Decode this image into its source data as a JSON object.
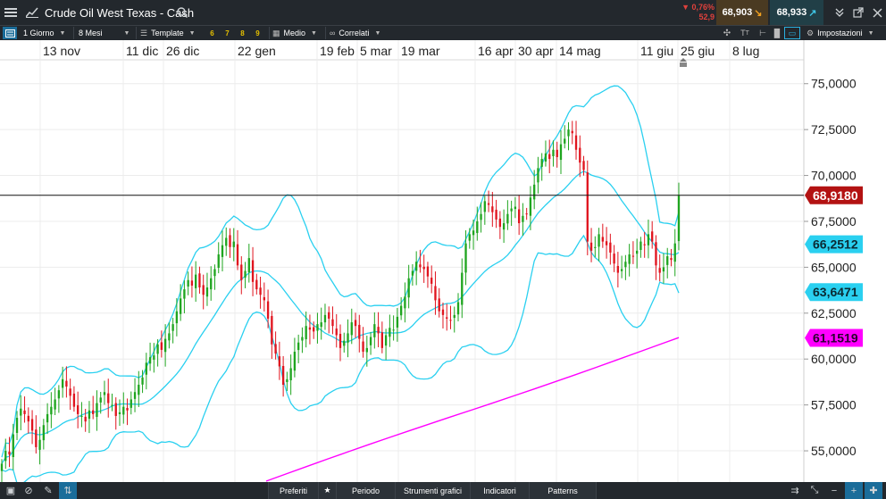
{
  "window": {
    "title": "Crude Oil West Texas - Cash"
  },
  "prices": {
    "change_pct": "▼ 0,76%",
    "change_abs": "52,9",
    "sell": "68,903",
    "buy": "68,933"
  },
  "toolbar": {
    "timeframe": "1 Giorno",
    "range": "8 Mesi",
    "template": "Template",
    "num_buttons": [
      "6",
      "7",
      "8",
      "9"
    ],
    "medio": "Medio",
    "correlati": "Correlati",
    "impostazioni": "Impostazioni"
  },
  "bottombar": {
    "preferiti": "Preferiti",
    "periodo": "Periodo",
    "strumenti": "Strumenti grafici",
    "indicatori": "Indicatori",
    "patterns": "Patterns"
  },
  "colors": {
    "bull": "#1fa51f",
    "bear": "#e0141e",
    "bands": "#2ad0f0",
    "ma": "#ff00ff",
    "current_price_bg": "#b31212",
    "band_label_bg": "#2ad0f0",
    "ma_label_bg": "#ff00ff"
  },
  "chart_data": {
    "type": "candlestick",
    "instrument": "Crude Oil West Texas - Cash",
    "x_tick_labels": [
      "13 nov",
      "11 dic",
      "26 dic",
      "22 gen",
      "19 feb",
      "5 mar",
      "19 mar",
      "16 apr",
      "30 apr",
      "14 mag",
      "11 giu",
      "25 giu",
      "8 lug"
    ],
    "y_tick_labels": [
      "75,0000",
      "72,5000",
      "70,0000",
      "67,5000",
      "65,0000",
      "62,5000",
      "60,0000",
      "57,5000",
      "55,0000"
    ],
    "y_ticks": [
      75,
      72.5,
      70,
      67.5,
      65,
      62.5,
      60,
      57.5,
      55
    ],
    "y_range": [
      53.3,
      76.3
    ],
    "current_price": 68.918,
    "current_price_label": "68,9180",
    "band_labels": {
      "upper": "66,2512",
      "lower": "63,6471",
      "ma": "61,1519"
    },
    "close": [
      54.3,
      55.0,
      54.8,
      55.9,
      56.8,
      57.3,
      57.0,
      56.6,
      56.1,
      55.2,
      55.6,
      56.4,
      57.0,
      57.4,
      57.8,
      58.3,
      58.9,
      58.5,
      58.0,
      57.4,
      57.0,
      56.9,
      56.6,
      57.2,
      57.0,
      57.6,
      57.9,
      58.2,
      57.6,
      57.5,
      56.9,
      57.1,
      57.4,
      57.2,
      57.8,
      58.2,
      58.6,
      59.0,
      59.8,
      60.1,
      60.2,
      60.8,
      60.5,
      61.1,
      61.4,
      61.9,
      62.6,
      63.3,
      63.8,
      64.3,
      64.0,
      64.6,
      63.9,
      63.5,
      63.9,
      64.4,
      64.9,
      65.7,
      66.2,
      66.6,
      66.1,
      66.4,
      65.1,
      64.3,
      64.8,
      65.5,
      64.2,
      63.8,
      63.5,
      63.2,
      62.2,
      60.8,
      60.3,
      59.6,
      58.6,
      58.9,
      59.5,
      60.4,
      60.9,
      61.2,
      61.8,
      61.6,
      61.5,
      61.9,
      62.0,
      62.4,
      62.2,
      61.8,
      61.3,
      60.6,
      61.0,
      61.4,
      62.0,
      61.8,
      61.1,
      60.4,
      60.6,
      61.2,
      61.9,
      61.4,
      60.6,
      61.3,
      61.7,
      61.6,
      62.3,
      62.9,
      63.4,
      64.4,
      64.8,
      65.3,
      65.0,
      64.9,
      64.5,
      64.1,
      63.2,
      62.6,
      62.4,
      62.2,
      62.1,
      62.4,
      63.1,
      64.7,
      66.3,
      66.8,
      67.0,
      67.5,
      67.9,
      68.6,
      68.4,
      68.0,
      67.6,
      67.2,
      67.4,
      67.9,
      68.2,
      68.3,
      67.4,
      67.8,
      67.9,
      68.8,
      69.5,
      70.4,
      70.9,
      71.2,
      70.9,
      71.4,
      71.0,
      71.7,
      72.0,
      72.5,
      72.3,
      71.4,
      70.7,
      70.3,
      66.4,
      65.9,
      66.1,
      66.8,
      66.4,
      66.2,
      65.8,
      65.2,
      64.7,
      64.9,
      65.3,
      65.7,
      65.6,
      65.9,
      66.4,
      66.2,
      66.8,
      66.4,
      65.1,
      64.7,
      65.0,
      65.6,
      65.4,
      66.3,
      68.9
    ]
  }
}
